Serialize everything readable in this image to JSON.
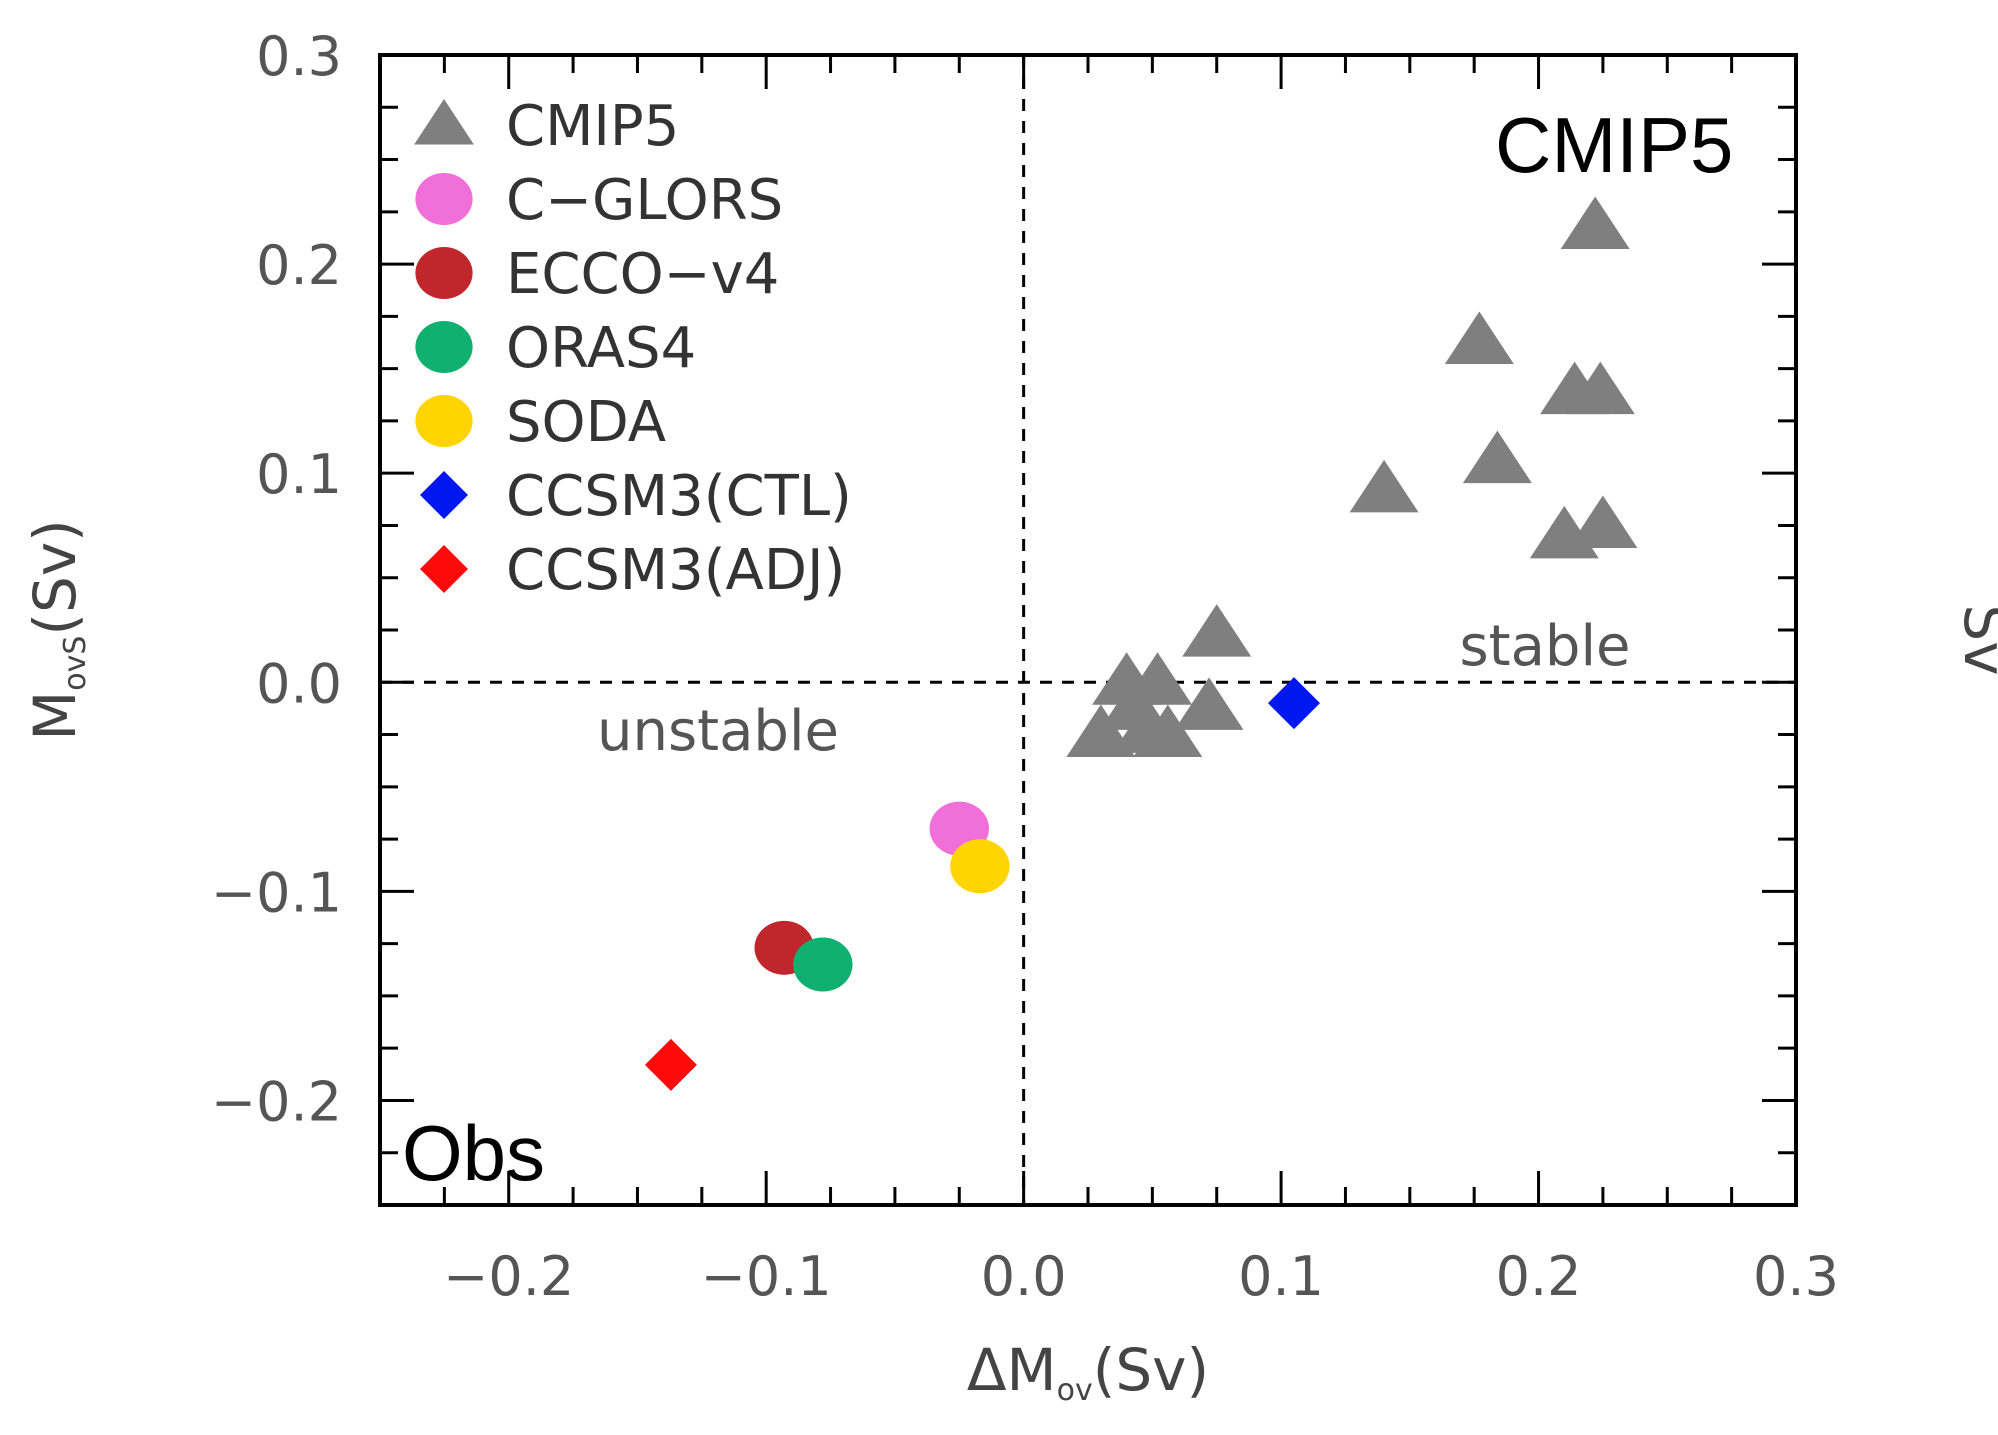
{
  "chart_data": {
    "type": "scatter",
    "xlabel": {
      "main": "ΔM",
      "sub": "ov",
      "unit": "(Sv)"
    },
    "ylabel": {
      "main": "M",
      "sub": "ovS",
      "unit": "(Sv)"
    },
    "right_axis_label": "Sv",
    "xlim": [
      -0.25,
      0.3
    ],
    "ylim": [
      -0.25,
      0.3
    ],
    "xticks": [
      -0.2,
      -0.1,
      0.0,
      0.1,
      0.2,
      0.3
    ],
    "yticks": [
      -0.2,
      -0.1,
      0.0,
      0.1,
      0.2,
      0.3
    ],
    "xtick_labels": [
      "−0.2",
      "−0.1",
      "0.0",
      "0.1",
      "0.2",
      "0.3"
    ],
    "ytick_labels": [
      "−0.2",
      "−0.1",
      "0.0",
      "0.1",
      "0.2",
      "0.3"
    ],
    "grid": false,
    "reference_lines": {
      "x": 0.0,
      "y": 0.0,
      "style": "dashed"
    },
    "legend_position": "top-left",
    "annotations": {
      "stable": "stable",
      "unstable": "unstable",
      "cmip5_panel": "CMIP5",
      "obs_panel": "Obs"
    },
    "series": [
      {
        "name": "CMIP5",
        "marker": "triangle",
        "color": "#7f7f7f",
        "points": [
          [
            0.222,
            0.218
          ],
          [
            0.177,
            0.163
          ],
          [
            0.214,
            0.139
          ],
          [
            0.224,
            0.139
          ],
          [
            0.184,
            0.106
          ],
          [
            0.14,
            0.092
          ],
          [
            0.21,
            0.07
          ],
          [
            0.225,
            0.075
          ],
          [
            0.075,
            0.023
          ],
          [
            0.04,
            0.0
          ],
          [
            0.052,
            0.0
          ],
          [
            0.072,
            -0.012
          ],
          [
            0.03,
            -0.025
          ],
          [
            0.048,
            -0.023
          ],
          [
            0.056,
            -0.025
          ],
          [
            0.043,
            -0.012
          ]
        ]
      },
      {
        "name": "C−GLORS",
        "marker": "circle",
        "color": "#f06fd8",
        "points": [
          [
            -0.025,
            -0.07
          ]
        ]
      },
      {
        "name": "ECCO−v4",
        "marker": "circle",
        "color": "#c0272d",
        "points": [
          [
            -0.093,
            -0.127
          ]
        ]
      },
      {
        "name": "ORAS4",
        "marker": "circle",
        "color": "#10b070",
        "points": [
          [
            -0.078,
            -0.135
          ]
        ]
      },
      {
        "name": "SODA",
        "marker": "circle",
        "color": "#ffd400",
        "points": [
          [
            -0.017,
            -0.088
          ]
        ]
      },
      {
        "name": "CCSM3(CTL)",
        "marker": "diamond",
        "color": "#0018f0",
        "points": [
          [
            0.105,
            -0.01
          ]
        ]
      },
      {
        "name": "CCSM3(ADJ)",
        "marker": "diamond",
        "color": "#ff0a0a",
        "points": [
          [
            -0.137,
            -0.183
          ]
        ]
      }
    ]
  }
}
